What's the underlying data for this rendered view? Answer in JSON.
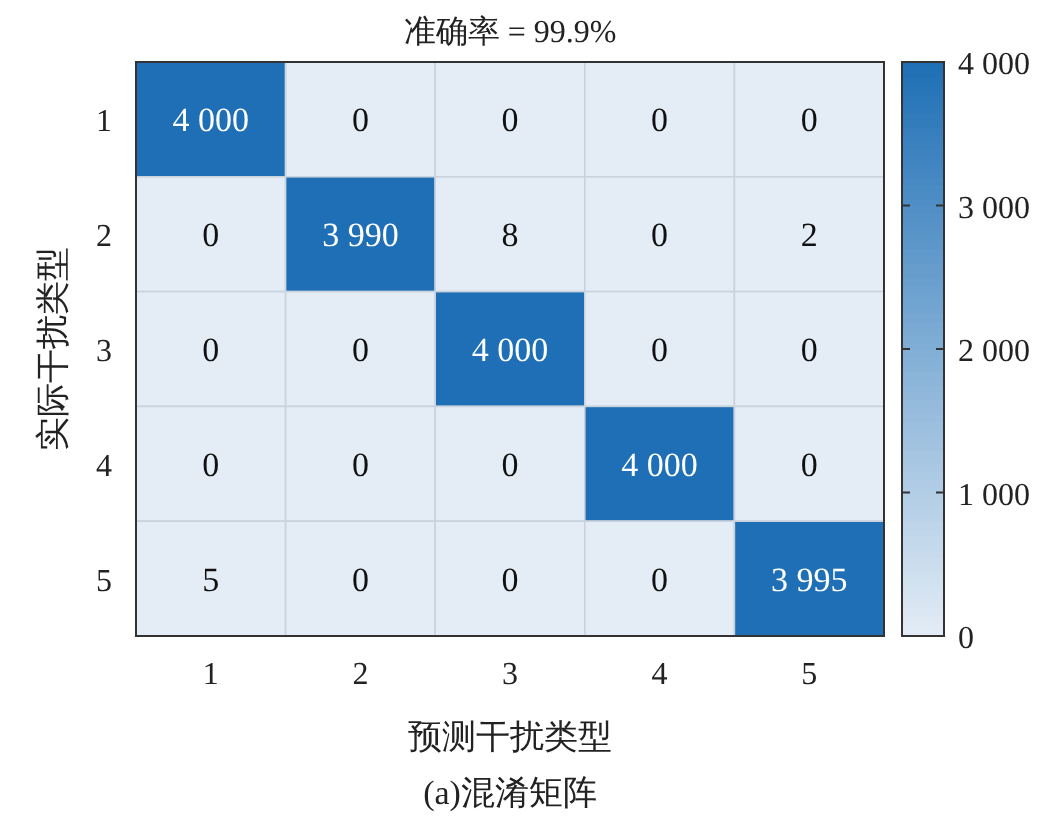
{
  "chart_data": {
    "type": "heatmap",
    "title": "准确率 = 99.9%",
    "xlabel": "预测干扰类型",
    "ylabel": "实际干扰类型",
    "annotations": [
      "(a)混淆矩阵"
    ],
    "categories": [
      "1",
      "2",
      "3",
      "4",
      "5"
    ],
    "y_categories": [
      "1",
      "2",
      "3",
      "4",
      "5"
    ],
    "cells": [
      [
        4000,
        0,
        0,
        0,
        0
      ],
      [
        0,
        3990,
        8,
        0,
        2
      ],
      [
        0,
        0,
        4000,
        0,
        0
      ],
      [
        0,
        0,
        0,
        4000,
        0
      ],
      [
        5,
        0,
        0,
        0,
        3995
      ]
    ],
    "cell_labels": [
      [
        "4 000",
        "0",
        "0",
        "0",
        "0"
      ],
      [
        "0",
        "3 990",
        "8",
        "0",
        "2"
      ],
      [
        "0",
        "0",
        "4 000",
        "0",
        "0"
      ],
      [
        "0",
        "0",
        "0",
        "4 000",
        "0"
      ],
      [
        "5",
        "0",
        "0",
        "0",
        "3 995"
      ]
    ],
    "clim": [
      0,
      4000
    ],
    "cticks": [
      0,
      {
        "value": 1000,
        "label": "1 000"
      },
      {
        "value": 2000,
        "label": "2 000"
      },
      {
        "value": 3000,
        "label": "3 000"
      },
      {
        "value": 4000,
        "label": "4 000"
      }
    ]
  }
}
